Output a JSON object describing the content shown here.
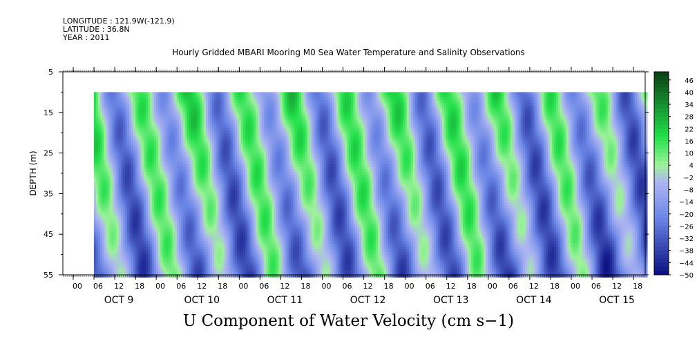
{
  "header": {
    "longitude": "LONGITUDE : 121.9W(-121.9)",
    "latitude": "LATITUDE : 36.8N",
    "year": "YEAR : 2011",
    "subtitle": "Hourly Gridded MBARI Mooring M0 Sea Water Temperature and Salinity Observations"
  },
  "chart_data": {
    "type": "heatmap",
    "title": "U Component of Water Velocity (cm s−1)",
    "xlabel": "",
    "ylabel": "DEPTH (m)",
    "ylim": [
      5,
      55
    ],
    "y_inverted": true,
    "y_ticks": [
      5,
      15,
      25,
      35,
      45,
      55
    ],
    "x_hour_ticks": [
      "00",
      "06",
      "12",
      "18",
      "00",
      "06",
      "12",
      "18",
      "00",
      "06",
      "12",
      "18",
      "00",
      "06",
      "12",
      "18",
      "00",
      "06",
      "12",
      "18",
      "00",
      "06",
      "12",
      "18",
      "00",
      "06",
      "12",
      "18"
    ],
    "x_day_labels": [
      "OCT  9",
      "OCT 10",
      "OCT 11",
      "OCT 12",
      "OCT 13",
      "OCT 14",
      "OCT 15"
    ],
    "x_range_hours": [
      0,
      168
    ],
    "data_extent": {
      "x_start_hours": 5,
      "depth_top": 10,
      "depth_bottom": 55
    },
    "colorbar": {
      "min": -50,
      "max": 50,
      "labels": [
        "46",
        "40",
        "34",
        "28",
        "22",
        "16",
        "10",
        "4",
        "−2",
        "−8",
        "−14",
        "−20",
        "−26",
        "−32",
        "−38",
        "−44",
        "−50"
      ]
    },
    "colors": {
      "strong_positive": "#0a3d14",
      "positive": "#22e04a",
      "light_positive": "#9ef29a",
      "light_negative": "#aeb6f2",
      "negative": "#6a86e6",
      "strong_negative": "#0a0f80"
    },
    "grid": false
  }
}
